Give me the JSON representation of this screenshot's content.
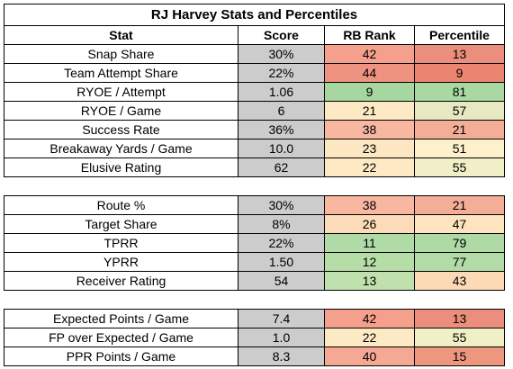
{
  "title": "RJ Harvey Stats and Percentiles",
  "headers": [
    "Stat",
    "Score",
    "RB Rank",
    "Percentile"
  ],
  "groups": [
    {
      "rows": [
        {
          "stat": "Snap Share",
          "score": "30%",
          "rank": "42",
          "pct": "13",
          "rank_color": "#f4a08d",
          "pct_color": "#ec8e7d"
        },
        {
          "stat": "Team Attempt Share",
          "score": "22%",
          "rank": "44",
          "pct": "9",
          "rank_color": "#ee9380",
          "pct_color": "#ea8571"
        },
        {
          "stat": "RYOE / Attempt",
          "score": "1.06",
          "rank": "9",
          "pct": "81",
          "rank_color": "#a6d7a0",
          "pct_color": "#aad8a3"
        },
        {
          "stat": "RYOE / Game",
          "score": "6",
          "rank": "21",
          "pct": "57",
          "rank_color": "#fde9c4",
          "pct_color": "#e8e8c2"
        },
        {
          "stat": "Success Rate",
          "score": "36%",
          "rank": "38",
          "pct": "21",
          "rank_color": "#f7b7a0",
          "pct_color": "#f4ad97"
        },
        {
          "stat": "Breakaway Yards / Game",
          "score": "10.0",
          "rank": "23",
          "pct": "51",
          "rank_color": "#fde7c2",
          "pct_color": "#fdf0cb"
        },
        {
          "stat": "Elusive Rating",
          "score": "62",
          "rank": "22",
          "pct": "55",
          "rank_color": "#fde9c4",
          "pct_color": "#f1efc8"
        }
      ]
    },
    {
      "rows": [
        {
          "stat": "Route %",
          "score": "30%",
          "rank": "38",
          "pct": "21",
          "rank_color": "#f7b7a0",
          "pct_color": "#f4ad97"
        },
        {
          "stat": "Target Share",
          "score": "8%",
          "rank": "26",
          "pct": "47",
          "rank_color": "#fcdcb8",
          "pct_color": "#fde4bf"
        },
        {
          "stat": "TPRR",
          "score": "22%",
          "rank": "11",
          "pct": "79",
          "rank_color": "#b0dba6",
          "pct_color": "#aed9a5"
        },
        {
          "stat": "YPRR",
          "score": "1.50",
          "rank": "12",
          "pct": "77",
          "rank_color": "#b6dda8",
          "pct_color": "#b3dba8"
        },
        {
          "stat": "Receiver Rating",
          "score": "54",
          "rank": "13",
          "pct": "43",
          "rank_color": "#c0e0ad",
          "pct_color": "#fcdab5"
        }
      ]
    },
    {
      "rows": [
        {
          "stat": "Expected Points / Game",
          "score": "7.4",
          "rank": "42",
          "pct": "13",
          "rank_color": "#f4a08d",
          "pct_color": "#ec8e7d"
        },
        {
          "stat": "FP over Expected / Game",
          "score": "1.0",
          "rank": "22",
          "pct": "55",
          "rank_color": "#fde9c4",
          "pct_color": "#f1efc8"
        },
        {
          "stat": "PPR Points / Game",
          "score": "8.3",
          "rank": "40",
          "pct": "15",
          "rank_color": "#f5a894",
          "pct_color": "#ee977f"
        }
      ]
    }
  ]
}
